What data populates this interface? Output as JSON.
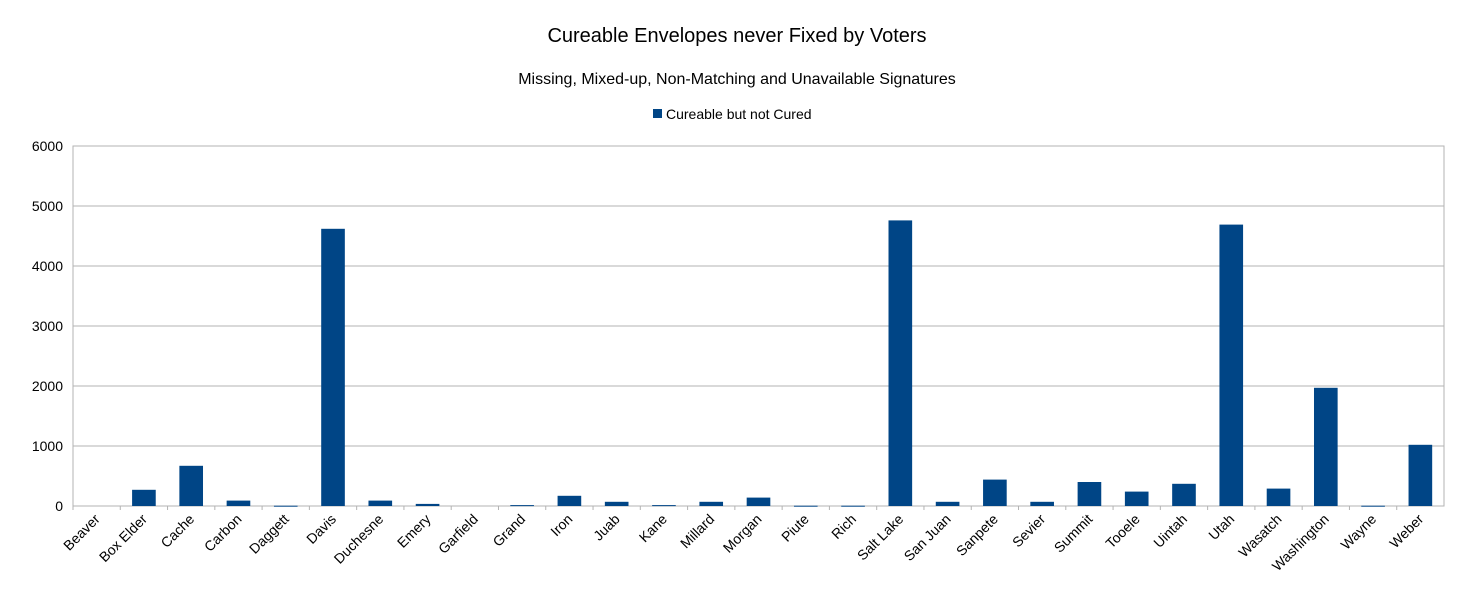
{
  "chart_data": {
    "type": "bar",
    "title": "Cureable Envelopes never Fixed by Voters",
    "subtitle": "Missing, Mixed-up, Non-Matching and Unavailable Signatures",
    "xlabel": "",
    "ylabel": "",
    "ylim": [
      0,
      6000
    ],
    "yticks": [
      0,
      1000,
      2000,
      3000,
      4000,
      5000,
      6000
    ],
    "grid": true,
    "legend_position": "top-center",
    "colors": {
      "bar": "#004586",
      "grid": "#b3b3b3",
      "axis": "#b3b3b3"
    },
    "categories": [
      "Beaver",
      "Box Elder",
      "Cache",
      "Carbon",
      "Daggett",
      "Davis",
      "Duchesne",
      "Emery",
      "Garfield",
      "Grand",
      "Iron",
      "Juab",
      "Kane",
      "Millard",
      "Morgan",
      "Piute",
      "Rich",
      "Salt Lake",
      "San Juan",
      "Sanpete",
      "Sevier",
      "Summit",
      "Tooele",
      "Uintah",
      "Utah",
      "Wasatch",
      "Washington",
      "Wayne",
      "Weber"
    ],
    "series": [
      {
        "name": "Cureable but not Cured",
        "values": [
          0,
          270,
          670,
          90,
          5,
          4620,
          90,
          35,
          0,
          15,
          170,
          70,
          15,
          70,
          140,
          5,
          5,
          4760,
          70,
          440,
          70,
          400,
          240,
          370,
          4690,
          290,
          1970,
          5,
          1020
        ]
      }
    ]
  }
}
